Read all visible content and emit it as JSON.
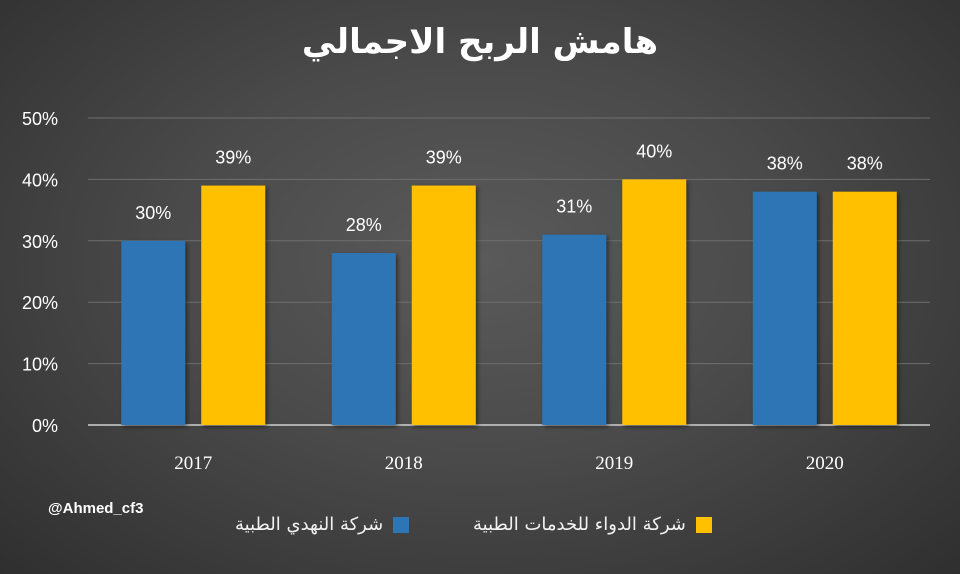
{
  "chart_data": {
    "type": "bar",
    "title": "هامش الربح الاجمالي",
    "categories": [
      "2017",
      "2018",
      "2019",
      "2020"
    ],
    "series": [
      {
        "name": "شركة النهدي الطبية",
        "values": [
          30,
          28,
          31,
          38
        ],
        "labels": [
          "30%",
          "28%",
          "31%",
          "38%"
        ],
        "color": "#2e75b6"
      },
      {
        "name": "شركة الدواء للخدمات الطبية",
        "values": [
          39,
          39,
          40,
          38
        ],
        "labels": [
          "39%",
          "39%",
          "40%",
          "38%"
        ],
        "color": "#ffc000"
      }
    ],
    "yticks": [
      "0%",
      "10%",
      "20%",
      "30%",
      "40%",
      "50%"
    ],
    "ylim": [
      0,
      50
    ],
    "grid": true,
    "legend_position": "bottom"
  },
  "watermark": "@Ahmed_cf3"
}
